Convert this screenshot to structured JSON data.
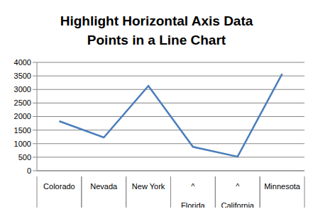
{
  "chart_data": {
    "type": "line",
    "title": "Highlight Horizontal Axis Data Points in a Line Chart",
    "categories": [
      "Colorado",
      "Nevada",
      "New York",
      "^\nFlorida",
      "^\nCalifornia",
      "Minnesota"
    ],
    "values": [
      1830,
      1230,
      3130,
      880,
      520,
      3580
    ],
    "color": "#4a7ebb",
    "ylim": [
      0,
      4000
    ],
    "yticks": [
      0,
      500,
      1000,
      1500,
      2000,
      2500,
      3000,
      3500,
      4000
    ],
    "grid": true
  }
}
